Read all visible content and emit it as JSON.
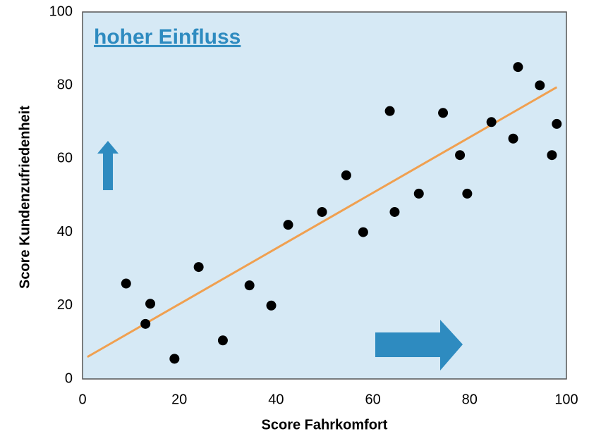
{
  "chart_data": {
    "type": "scatter",
    "annotation": "hoher Einfluss",
    "annotation_color": "#2e8bc0",
    "x_label": "Score Fahrkomfort",
    "y_label": "Score Kundenzufriedenheit",
    "background": "#d6e9f5",
    "x": [
      9,
      13,
      14,
      19,
      24,
      29,
      34.5,
      39,
      42.5,
      49.5,
      54.5,
      58,
      63.5,
      64.5,
      69.5,
      74.5,
      78,
      79.5,
      84.5,
      89,
      90,
      94.5,
      97,
      98
    ],
    "series": [
      {
        "color": "#000000",
        "values": [
          26,
          15,
          20.5,
          5.5,
          30.5,
          10.5,
          25.5,
          20,
          42,
          45.5,
          55.5,
          40,
          73,
          45.5,
          50.5,
          72.5,
          61,
          50.5,
          70,
          65.5,
          85,
          80,
          61,
          69.5
        ]
      }
    ],
    "trend_line": {
      "x": [
        1,
        98
      ],
      "y": [
        6,
        79.5
      ],
      "color": "#f0a050"
    },
    "xlim": [
      0,
      100
    ],
    "xticks": [
      0,
      20,
      40,
      60,
      80,
      100
    ],
    "ylim": [
      0,
      100
    ],
    "yticks": [
      0,
      20,
      40,
      60,
      80,
      100
    ],
    "grid": false
  }
}
